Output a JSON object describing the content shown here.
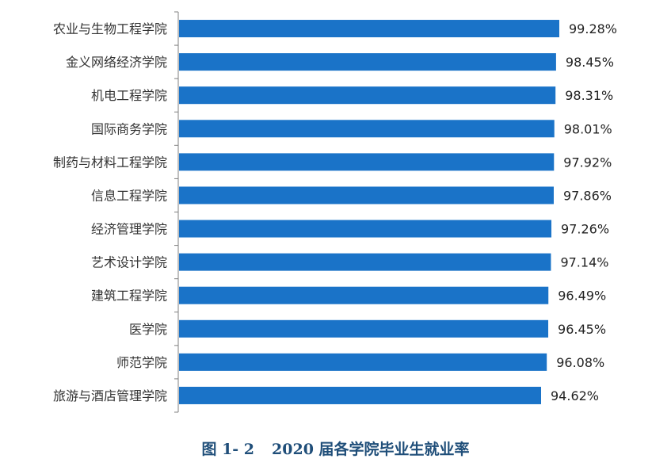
{
  "chart_data": {
    "type": "bar",
    "orientation": "horizontal",
    "categories": [
      "农业与生物工程学院",
      "金义网络经济学院",
      "机电工程学院",
      "国际商务学院",
      "制药与材料工程学院",
      "信息工程学院",
      "经济管理学院",
      "艺术设计学院",
      "建筑工程学院",
      "医学院",
      "师范学院",
      "旅游与酒店管理学院"
    ],
    "values": [
      99.28,
      98.45,
      98.31,
      98.01,
      97.92,
      97.86,
      97.26,
      97.14,
      96.49,
      96.45,
      96.08,
      94.62
    ],
    "value_labels": [
      "99.28%",
      "98.45%",
      "98.31%",
      "98.01%",
      "97.92%",
      "97.86%",
      "97.26%",
      "97.14%",
      "96.49%",
      "96.45%",
      "96.08%",
      "94.62%"
    ],
    "grid": false,
    "bar_color": "#1a73c8",
    "axis_color": "#808080"
  },
  "caption": {
    "figure_number": "图 1- 2",
    "text": "2020 届各学院毕业生就业率"
  }
}
